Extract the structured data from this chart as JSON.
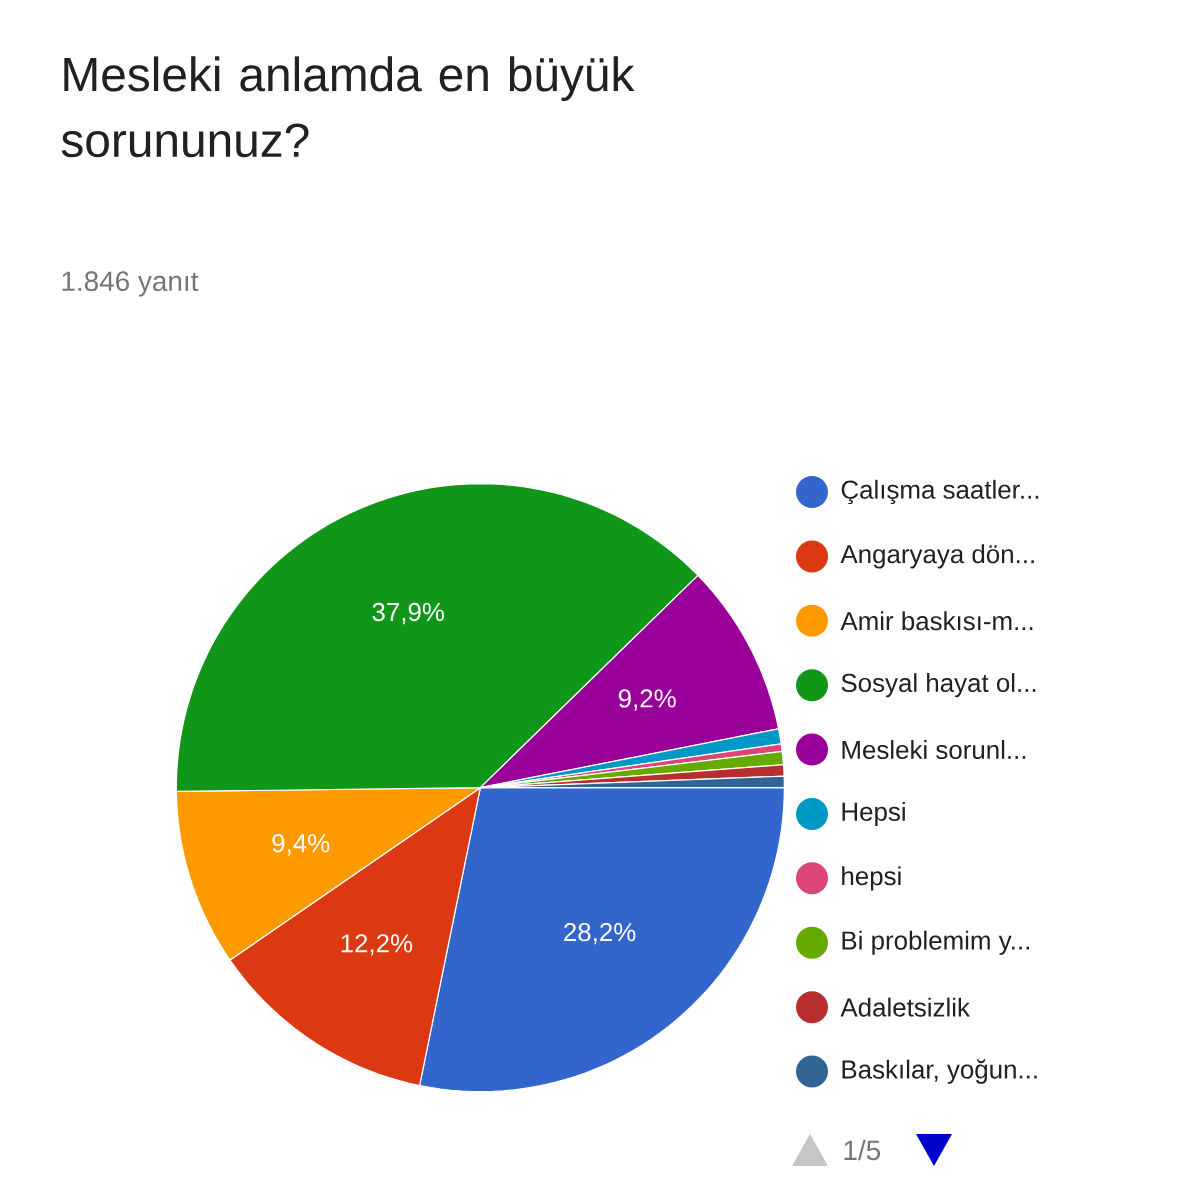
{
  "chart_data": {
    "type": "pie",
    "title": "Mesleki anlamda en büyük sorununuz?",
    "subtitle": "1.846 yanıt",
    "categories": [
      "Çalışma saatler...",
      "Angaryaya dön...",
      "Amir baskısı-m...",
      "Sosyal hayat ol...",
      "Mesleki sorunl...",
      "Hepsi",
      "hepsi",
      "Bi problemim y...",
      "Adaletsizlik",
      "Baskılar, yoğun..."
    ],
    "values": [
      28.2,
      12.2,
      9.4,
      37.9,
      9.2,
      0.8,
      0.4,
      0.7,
      0.6,
      0.6
    ],
    "colors": [
      "#3366cc",
      "#dc3912",
      "#ff9900",
      "#109618",
      "#990099",
      "#0099c6",
      "#dd4477",
      "#66aa00",
      "#b82e2e",
      "#316395"
    ],
    "value_labels": [
      "28,2%",
      "12,2%",
      "9,4%",
      "37,9%",
      "9,2%",
      null,
      null,
      null,
      null,
      null
    ],
    "legend": "right",
    "annotations": [
      "1/5"
    ]
  }
}
